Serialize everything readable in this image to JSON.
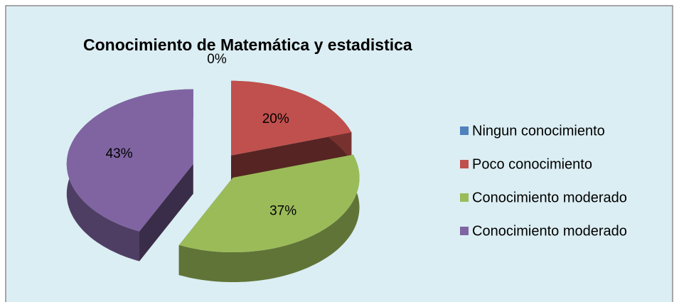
{
  "chart_data": {
    "type": "pie",
    "title": "Conocimiento de Matemática y estadistica",
    "categories": [
      "Ningun conocimiento",
      "Poco conocimiento",
      "Conocimiento moderado",
      "Conocimiento moderado"
    ],
    "values": [
      0,
      20,
      37,
      43
    ],
    "value_labels": [
      "0%",
      "20%",
      "37%",
      "43%"
    ],
    "colors": [
      "#4f81bd",
      "#c0504d",
      "#9bbb59",
      "#8064a2"
    ],
    "legend": "right"
  }
}
